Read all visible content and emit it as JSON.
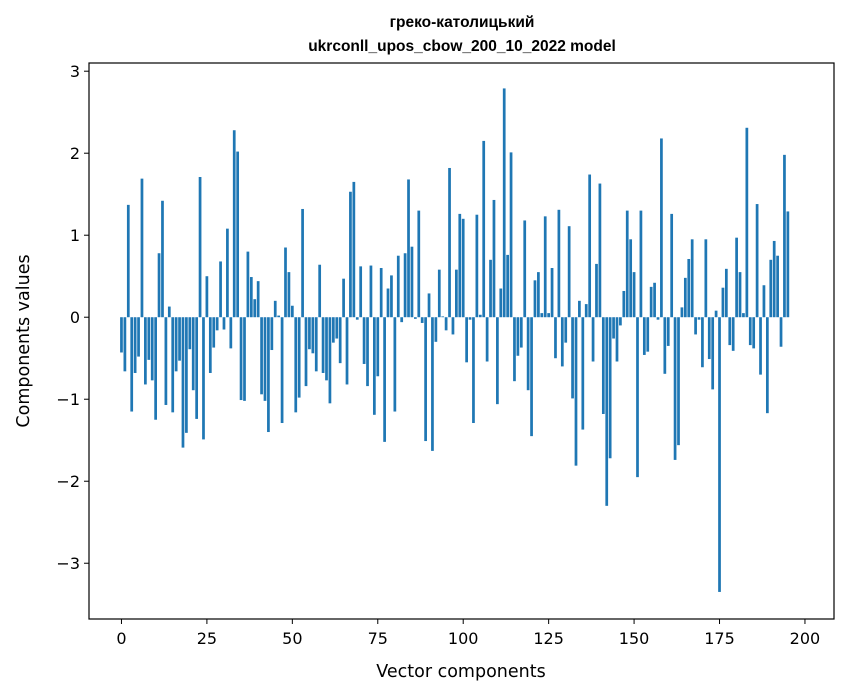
{
  "chart_data": {
    "type": "bar",
    "title": "греко-католицький",
    "subtitle": "ukrconll_upos_cbow_200_10_2022 model",
    "xlabel": "Vector components",
    "ylabel": "Components values",
    "xlim": [
      -9.5,
      208.5
    ],
    "ylim": [
      -3.68,
      3.1
    ],
    "xticks": [
      0,
      25,
      50,
      75,
      100,
      125,
      150,
      175,
      200
    ],
    "yticks": [
      -3,
      -2,
      -1,
      0,
      1,
      2,
      3
    ],
    "ytick_labels": [
      "−3",
      "−2",
      "−1",
      "0",
      "1",
      "2",
      "3"
    ],
    "grid": false,
    "bar_color": "#1f77b4",
    "values": [
      -0.43,
      -0.66,
      1.37,
      -1.15,
      -0.68,
      -0.48,
      1.69,
      -0.82,
      -0.52,
      -0.77,
      -1.25,
      0.78,
      1.42,
      -1.07,
      0.13,
      -1.16,
      -0.66,
      -0.53,
      -1.59,
      -1.41,
      -0.39,
      -0.89,
      -1.24,
      1.71,
      -1.49,
      0.5,
      -0.68,
      -0.37,
      -0.16,
      0.68,
      -0.15,
      1.08,
      -0.38,
      2.28,
      2.02,
      -1.01,
      -1.02,
      0.8,
      0.49,
      0.22,
      0.44,
      -0.94,
      -1.02,
      -1.4,
      -0.4,
      0.2,
      0.02,
      -1.29,
      0.85,
      0.55,
      0.14,
      -1.16,
      -0.98,
      1.32,
      -0.84,
      -0.39,
      -0.44,
      -0.66,
      0.64,
      -0.68,
      -0.77,
      -1.05,
      -0.31,
      -0.26,
      -0.56,
      0.47,
      -0.82,
      1.53,
      1.65,
      -0.03,
      0.62,
      -0.57,
      -0.84,
      0.63,
      -1.19,
      -0.72,
      0.6,
      -1.52,
      0.35,
      0.51,
      -1.15,
      0.75,
      -0.06,
      0.78,
      1.68,
      0.86,
      -0.02,
      1.3,
      -0.07,
      -1.51,
      0.29,
      -1.63,
      -0.3,
      0.58,
      0.01,
      -0.16,
      1.82,
      -0.21,
      0.58,
      1.26,
      1.2,
      -0.55,
      -0.03,
      -1.29,
      1.25,
      0.03,
      2.15,
      -0.54,
      0.7,
      1.43,
      -1.06,
      0.35,
      2.79,
      0.76,
      2.01,
      -0.78,
      -0.47,
      -0.37,
      1.18,
      -0.89,
      -1.45,
      0.45,
      0.55,
      0.05,
      1.23,
      0.05,
      0.6,
      -0.5,
      1.31,
      -0.6,
      -0.31,
      1.11,
      -0.99,
      -1.81,
      0.2,
      -1.37,
      0.16,
      1.74,
      -0.54,
      0.65,
      1.63,
      -1.18,
      -2.3,
      -1.72,
      -0.26,
      -0.54,
      -0.1,
      0.32,
      1.3,
      0.95,
      0.55,
      -1.95,
      1.3,
      -0.46,
      -0.42,
      0.37,
      0.42,
      -0.03,
      2.18,
      -0.69,
      -0.35,
      1.26,
      -1.74,
      -1.56,
      0.12,
      0.48,
      0.71,
      0.95,
      -0.21,
      -0.03,
      -0.61,
      0.95,
      -0.51,
      -0.88,
      0.08,
      -3.35,
      0.36,
      0.59,
      -0.34,
      -0.41,
      0.97,
      0.55,
      0.05,
      2.31,
      -0.34,
      -0.38,
      1.38,
      -0.7,
      0.39,
      -1.17,
      0.7,
      0.93,
      0.75,
      -0.36,
      1.98,
      1.29
    ]
  }
}
